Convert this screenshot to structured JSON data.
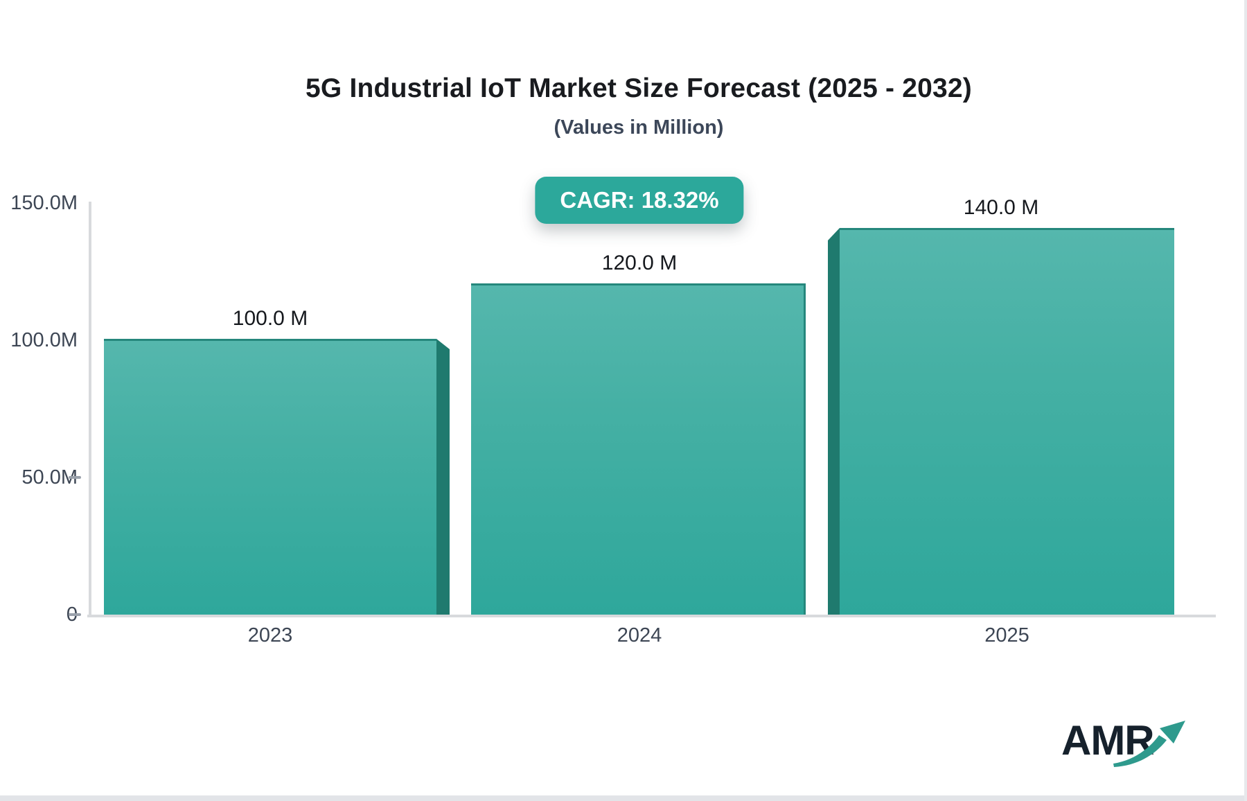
{
  "chart_data": {
    "type": "bar",
    "title": "5G Industrial IoT Market Size Forecast (2025 - 2032)",
    "subtitle": "(Values in Million)",
    "badge_label": "CAGR: 18.32%",
    "categories": [
      "2023",
      "2024",
      "2025"
    ],
    "values": [
      100,
      120,
      140
    ],
    "value_labels": [
      "100.0 M",
      "120.0 M",
      "140.0 M"
    ],
    "unit": "Million",
    "ylim": [
      0,
      150
    ],
    "ytick_labels_top_to_bottom": [
      "150.0M",
      "100.0M",
      "50.0M",
      "0"
    ],
    "grid": "off",
    "legend": "none",
    "colors": {
      "bar_gradient_top": "#55b7ad",
      "bar_gradient_bottom": "#2ea79b",
      "bar_side_face": "#1f7a6e",
      "bar_top_edge": "#25877c",
      "badge_background": "#2ca89b",
      "badge_text": "#ffffff",
      "axis_line": "#d8dadd",
      "tick_text": "#3d4654",
      "title_text": "#191b1f"
    }
  },
  "branding": {
    "logo_text": "AMR",
    "logo_arrow_color": "#2e9a8d"
  }
}
